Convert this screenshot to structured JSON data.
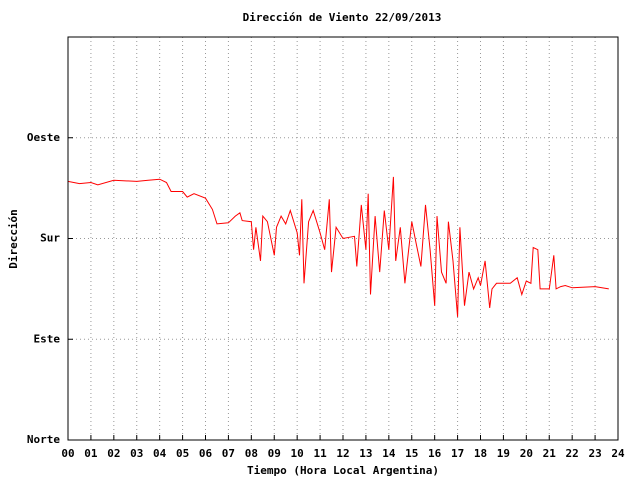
{
  "chart_data": {
    "type": "line",
    "title": "Dirección de Viento 22/09/2013",
    "ylabel": "Dirección",
    "xlabel": "Tiempo (Hora Local Argentina)",
    "color": "#ff0000",
    "grid": true,
    "xlim": [
      0,
      24
    ],
    "ylim": [
      0,
      360
    ],
    "xticks": [
      {
        "value": 0,
        "label": "00"
      },
      {
        "value": 1,
        "label": "01"
      },
      {
        "value": 2,
        "label": "02"
      },
      {
        "value": 3,
        "label": "03"
      },
      {
        "value": 4,
        "label": "04"
      },
      {
        "value": 5,
        "label": "05"
      },
      {
        "value": 6,
        "label": "06"
      },
      {
        "value": 7,
        "label": "07"
      },
      {
        "value": 8,
        "label": "08"
      },
      {
        "value": 9,
        "label": "09"
      },
      10,
      11,
      12,
      13,
      14,
      15,
      16,
      17,
      18,
      19,
      20,
      21,
      22,
      23,
      24
    ],
    "yticks": [
      {
        "value": 0,
        "label": "Norte"
      },
      {
        "value": 90,
        "label": "Este"
      },
      {
        "value": 180,
        "label": "Sur"
      },
      {
        "value": 270,
        "label": "Oeste"
      }
    ],
    "x": [
      0,
      0.5,
      1,
      1.3,
      2,
      3,
      3.5,
      4,
      4.3,
      4.5,
      5,
      5.2,
      5.5,
      6,
      6.3,
      6.5,
      7,
      7.3,
      7.5,
      7.6,
      8,
      8.1,
      8.2,
      8.4,
      8.5,
      8.7,
      9,
      9.1,
      9.3,
      9.5,
      9.7,
      10,
      10.1,
      10.2,
      10.3,
      10.5,
      10.7,
      11,
      11.2,
      11.4,
      11.5,
      11.7,
      12,
      12.5,
      12.6,
      12.8,
      13,
      13.1,
      13.2,
      13.4,
      13.6,
      13.8,
      14,
      14.2,
      14.3,
      14.5,
      14.7,
      15,
      15.2,
      15.4,
      15.6,
      15.8,
      16,
      16.1,
      16.3,
      16.5,
      16.6,
      16.8,
      17,
      17.1,
      17.3,
      17.5,
      17.7,
      17.9,
      18,
      18.2,
      18.4,
      18.5,
      18.7,
      19,
      19.3,
      19.6,
      19.8,
      20,
      20.2,
      20.3,
      20.5,
      20.6,
      21,
      21.2,
      21.3,
      21.5,
      21.7,
      22,
      23,
      23.6
    ],
    "values": [
      231,
      229,
      230,
      228,
      232,
      231,
      232,
      233,
      230,
      222,
      222,
      217,
      220,
      216,
      206,
      193,
      194,
      200,
      203,
      196,
      195,
      170,
      190,
      160,
      200,
      195,
      165,
      190,
      200,
      193,
      205,
      185,
      165,
      215,
      140,
      195,
      205,
      185,
      170,
      215,
      150,
      190,
      180,
      182,
      155,
      210,
      170,
      220,
      130,
      200,
      150,
      205,
      170,
      235,
      160,
      190,
      140,
      195,
      175,
      155,
      210,
      170,
      120,
      200,
      150,
      140,
      195,
      160,
      110,
      190,
      120,
      150,
      135,
      145,
      138,
      160,
      118,
      135,
      140,
      140,
      140,
      145,
      130,
      142,
      140,
      172,
      170,
      135,
      135,
      165,
      135,
      137,
      138,
      136,
      137,
      135
    ]
  }
}
